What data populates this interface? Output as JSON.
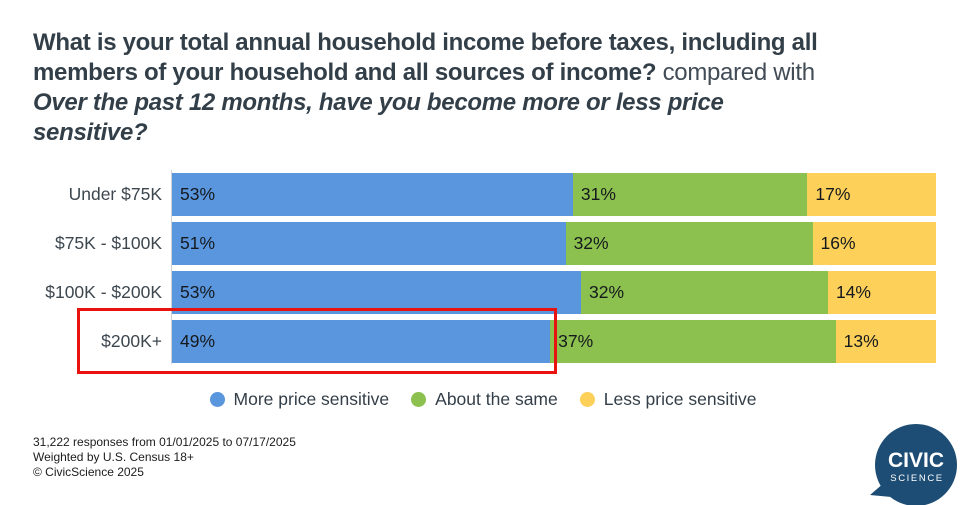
{
  "title": {
    "full_bold_question": "What is your total annual household income before taxes, including all members of your household and all sources of income?",
    "connector": "compared with",
    "full_italic_question": "Over the past 12 months, have you become more or less price sensitive?",
    "lines": [
      [
        {
          "text": "What is your total annual household income before taxes, including all",
          "style": "bold"
        }
      ],
      [
        {
          "text": "members of your household and all sources of income?",
          "style": "bold"
        },
        {
          "text": " compared with",
          "style": "normal"
        }
      ],
      [
        {
          "text": "Over the past 12 months, have you become more or less price",
          "style": "bolditalic"
        }
      ],
      [
        {
          "text": "sensitive?",
          "style": "bolditalic"
        }
      ]
    ]
  },
  "chart_data": {
    "type": "bar",
    "orientation": "horizontal",
    "stacked": true,
    "normalized_to_full_width": true,
    "categories": [
      "Under $75K",
      "$75K - $100K",
      "$100K - $200K",
      "$200K+"
    ],
    "series": [
      {
        "name": "More price sensitive",
        "color": "#5a96de",
        "values": [
          53,
          51,
          53,
          49
        ]
      },
      {
        "name": "About the same",
        "color": "#8cc04f",
        "values": [
          31,
          32,
          32,
          37
        ]
      },
      {
        "name": "Less price sensitive",
        "color": "#fdd05a",
        "values": [
          17,
          16,
          14,
          13
        ]
      }
    ],
    "value_suffix": "%",
    "legend_position": "bottom-center",
    "grid": false,
    "highlighted_category": "$200K+",
    "highlight_color": "#e8120e"
  },
  "footer": {
    "lines": [
      "31,222 responses from 01/01/2025 to 07/17/2025",
      "Weighted by U.S. Census 18+",
      "© CivicScience 2025"
    ]
  },
  "logo": {
    "line1": "CIVIC",
    "line2": "SCIENCE",
    "color": "#1d4d74"
  }
}
